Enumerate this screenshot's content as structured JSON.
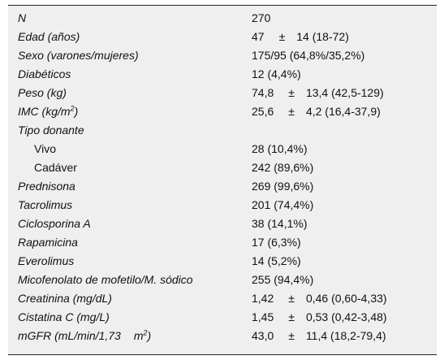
{
  "table": {
    "rows": [
      {
        "label": "N",
        "value": "270"
      },
      {
        "label": "Edad (años)",
        "mean": "47",
        "pm": "±",
        "rest": "14 (18-72)"
      },
      {
        "label": "Sexo (varones/mujeres)",
        "value": "175/95 (64,8%/35,2%)"
      },
      {
        "label": "Diabéticos",
        "value": "12 (4,4%)"
      },
      {
        "label": "Peso (kg)",
        "mean": "74,8",
        "pm": "±",
        "rest": "13,4 (42,5-129)"
      },
      {
        "label": "IMC (kg/m",
        "sup": "2",
        "after": ")",
        "mean": "25,6",
        "pm": "±",
        "rest": "4,2 (16,4-37,9)"
      },
      {
        "label": "Tipo donante"
      },
      {
        "label": "Vivo",
        "sub": true,
        "value": "28 (10,4%)"
      },
      {
        "label": "Cadáver",
        "sub": true,
        "value": "242 (89,6%)"
      },
      {
        "label": "Prednisona",
        "value": "269 (99,6%)"
      },
      {
        "label": "Tacrolimus",
        "value": "201 (74,4%)"
      },
      {
        "label": "Ciclosporina A",
        "value": "38 (14,1%)"
      },
      {
        "label": "Rapamicina",
        "value": "17 (6,3%)"
      },
      {
        "label": "Everolimus",
        "value": "14 (5,2%)"
      },
      {
        "label": "Micofenolato de mofetilo/M. sódico",
        "value": "255 (94,4%)"
      },
      {
        "label": "Creatinina (mg/dL)",
        "mean": "1,42",
        "pm": "±",
        "rest": "0,46 (0,60-4,33)"
      },
      {
        "label": "Cistatina C (mg/L)",
        "mean": "1,45",
        "pm": "±",
        "rest": "0,53 (0,42-3,48)"
      },
      {
        "label": "mGFR (mL/min/1,73",
        "sup": "2",
        "pre_sup": "m",
        "after": ")",
        "mean": "43,0",
        "pm": "±",
        "rest": "11,4 (18,2-79,4)"
      }
    ]
  }
}
